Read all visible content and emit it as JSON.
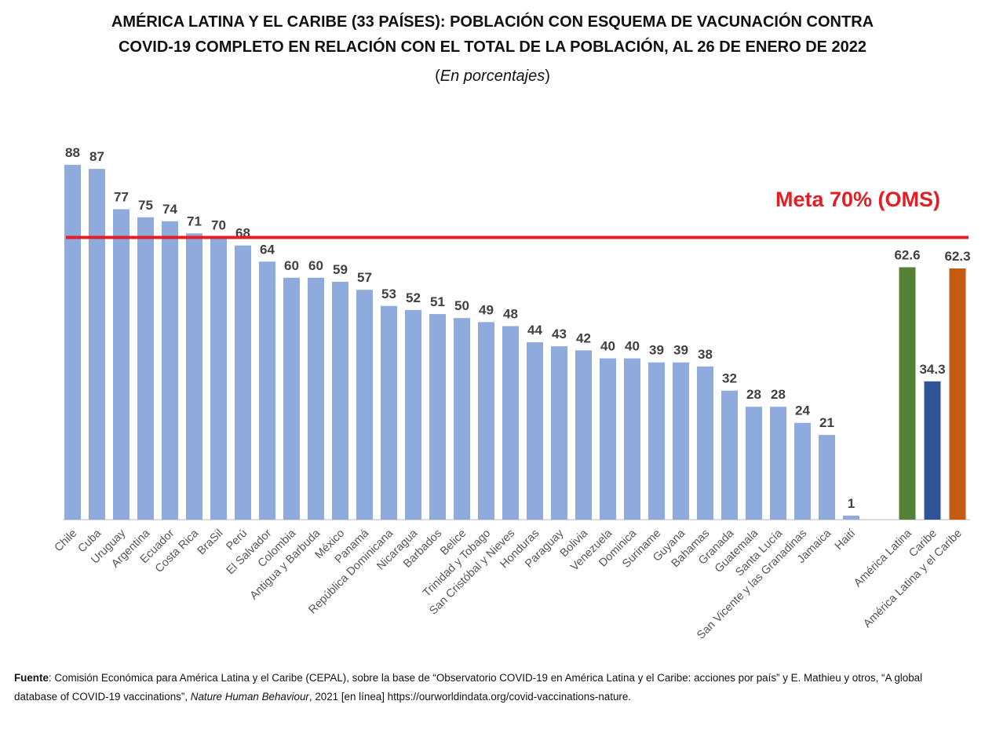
{
  "chart_data": {
    "type": "bar",
    "title_line1": "AMÉRICA LATINA Y EL CARIBE (33 PAÍSES): POBLACIÓN CON ESQUEMA DE VACUNACIÓN CONTRA",
    "title_line2": "COVID-19 COMPLETO EN RELACIÓN CON EL TOTAL DE LA POBLACIÓN, AL 26 DE ENERO DE 2022",
    "subtitle_open": "(",
    "subtitle_text": "En porcentajes",
    "subtitle_close": ")",
    "ylim": [
      0,
      88
    ],
    "grid": false,
    "categories": [
      "Chile",
      "Cuba",
      "Uruguay",
      "Argentina",
      "Ecuador",
      "Costa Rica",
      "BraSil",
      "Perú",
      "El Salvador",
      "Colombia",
      "Antigua y Barbuda",
      "México",
      "Panamá",
      "República Dominicana",
      "Nicaragua",
      "Barbados",
      "Belice",
      "Trinidad y Tobago",
      "San Cristóbal y Nieves",
      "Honduras",
      "Paraguay",
      "Bolivia",
      "Venezuela",
      "Dominica",
      "Suriname",
      "Guyana",
      "Bahamas",
      "Granada",
      "Guatemala",
      "Santa Lucía",
      "San Vicente y las Granadinas",
      "Jamaica",
      "Haití"
    ],
    "values": [
      88,
      87,
      77,
      75,
      74,
      71,
      70,
      68,
      64,
      60,
      60,
      59,
      57,
      53,
      52,
      51,
      50,
      49,
      48,
      44,
      43,
      42,
      40,
      40,
      39,
      39,
      38,
      32,
      28,
      28,
      24,
      21,
      1
    ],
    "value_labels": [
      "88",
      "87",
      "77",
      "75",
      "74",
      "71",
      "70",
      "68",
      "64",
      "60",
      "60",
      "59",
      "57",
      "53",
      "52",
      "51",
      "50",
      "49",
      "48",
      "44",
      "43",
      "42",
      "40",
      "40",
      "39",
      "39",
      "38",
      "32",
      "28",
      "28",
      "24",
      "21",
      "1"
    ],
    "country_color": "#8faadc",
    "aggregates": [
      {
        "name": "América Latina",
        "value": 62.6,
        "label": "62.6",
        "color": "#548235"
      },
      {
        "name": "Caribe",
        "value": 34.3,
        "label": "34.3",
        "color": "#2f5597"
      },
      {
        "name": "América Latina y el Caribe",
        "value": 62.3,
        "label": "62.3",
        "color": "#c55a11"
      }
    ],
    "reference_line": {
      "value": 70,
      "label": "Meta 70% (OMS)",
      "color": "#e31e24"
    }
  },
  "source": {
    "prefix": "Fuente",
    "colon": ":",
    "text1": " Comisión Económica para América Latina y el Caribe (CEPAL), sobre la base de “Observatorio COVID-19 en América Latina y el Caribe: acciones por país” y E. Mathieu y otros, “A global database of COVID-19 vaccinations”, ",
    "journal": "Nature Human Behaviour",
    "text2": ", 2021 [en línea] https://ourworldindata.org/covid-vaccinations-nature."
  }
}
